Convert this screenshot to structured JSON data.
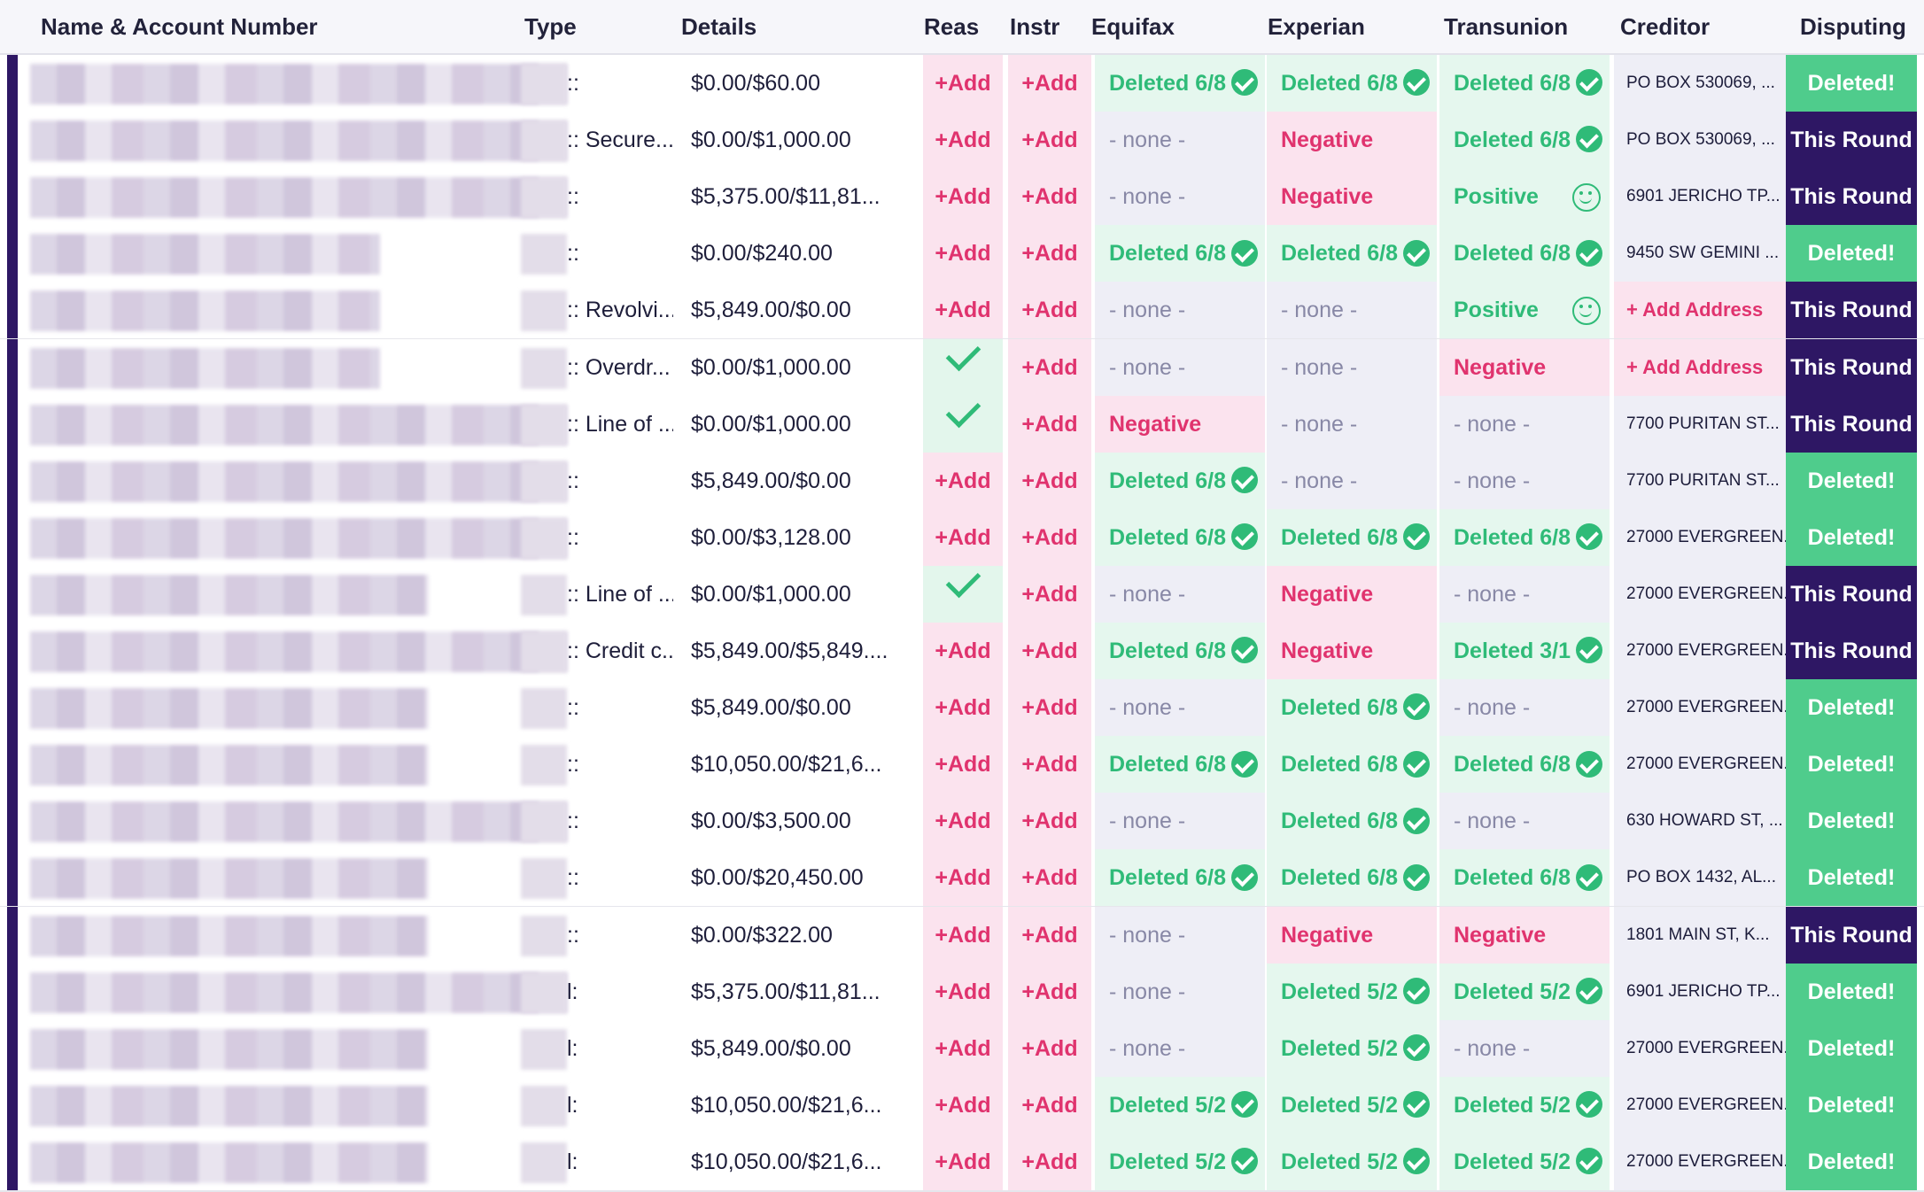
{
  "headers": {
    "name": "Name & Account Number",
    "type": "Type",
    "details": "Details",
    "reas": "Reas",
    "instr": "Instr",
    "equifax": "Equifax",
    "experian": "Experian",
    "transunion": "Transunion",
    "creditor": "Creditor",
    "disputing": "Disputing"
  },
  "labels": {
    "add": "+Add",
    "add_address": "+ Add Address"
  },
  "rows": [
    {
      "type": "::",
      "details": "$0.00/$60.00",
      "reas": "add",
      "eq": "Deleted 6/8",
      "ex": "Deleted 6/8",
      "tu": "Deleted 6/8",
      "creditor": "PO BOX 530069, ...",
      "disputing": "Deleted!"
    },
    {
      "type": ":: Secure...",
      "details": "$0.00/$1,000.00",
      "reas": "add",
      "eq": "- none -",
      "ex": "Negative",
      "tu": "Deleted 6/8",
      "creditor": "PO BOX 530069, ...",
      "disputing": "This Round"
    },
    {
      "type": "::",
      "details": "$5,375.00/$11,81...",
      "reas": "add",
      "eq": "- none -",
      "ex": "Negative",
      "tu": "Positive",
      "creditor": "6901 JERICHO TP...",
      "disputing": "This Round"
    },
    {
      "type": "::",
      "details": "$0.00/$240.00",
      "reas": "add",
      "eq": "Deleted 6/8",
      "ex": "Deleted 6/8",
      "tu": "Deleted 6/8",
      "creditor": "9450 SW GEMINI ...",
      "disputing": "Deleted!"
    },
    {
      "type": ":: Revolvi...",
      "details": "$5,849.00/$0.00",
      "reas": "add",
      "eq": "- none -",
      "ex": "- none -",
      "tu": "Positive",
      "creditor": "+ Add Address",
      "disputing": "This Round"
    },
    {
      "type": ":: Overdr...",
      "details": "$0.00/$1,000.00",
      "reas": "check",
      "eq": "- none -",
      "ex": "- none -",
      "tu": "Negative",
      "creditor": "+ Add Address",
      "disputing": "This Round"
    },
    {
      "type": ":: Line of ...",
      "details": "$0.00/$1,000.00",
      "reas": "check",
      "eq": "Negative",
      "ex": "- none -",
      "tu": "- none -",
      "creditor": "7700 PURITAN ST...",
      "disputing": "This Round"
    },
    {
      "type": "::",
      "details": "$5,849.00/$0.00",
      "reas": "add",
      "eq": "Deleted 6/8",
      "ex": "- none -",
      "tu": "- none -",
      "creditor": "7700 PURITAN ST...",
      "disputing": "Deleted!"
    },
    {
      "type": "::",
      "details": "$0.00/$3,128.00",
      "reas": "add",
      "eq": "Deleted 6/8",
      "ex": "Deleted 6/8",
      "tu": "Deleted 6/8",
      "creditor": "27000 EVERGREEN...",
      "disputing": "Deleted!"
    },
    {
      "type": ":: Line of ...",
      "details": "$0.00/$1,000.00",
      "reas": "check",
      "eq": "- none -",
      "ex": "Negative",
      "tu": "- none -",
      "creditor": "27000 EVERGREEN...",
      "disputing": "This Round"
    },
    {
      "type": ":: Credit c...",
      "details": "$5,849.00/$5,849....",
      "reas": "add",
      "eq": "Deleted 6/8",
      "ex": "Negative",
      "tu": "Deleted 3/1",
      "creditor": "27000 EVERGREEN...",
      "disputing": "This Round"
    },
    {
      "type": "::",
      "details": "$5,849.00/$0.00",
      "reas": "add",
      "eq": "- none -",
      "ex": "Deleted 6/8",
      "tu": "- none -",
      "creditor": "27000 EVERGREEN...",
      "disputing": "Deleted!"
    },
    {
      "type": "::",
      "details": "$10,050.00/$21,6...",
      "reas": "add",
      "eq": "Deleted 6/8",
      "ex": "Deleted 6/8",
      "tu": "Deleted 6/8",
      "creditor": "27000 EVERGREEN...",
      "disputing": "Deleted!"
    },
    {
      "type": "::",
      "details": "$0.00/$3,500.00",
      "reas": "add",
      "eq": "- none -",
      "ex": "Deleted 6/8",
      "tu": "- none -",
      "creditor": "630 HOWARD ST, ...",
      "disputing": "Deleted!"
    },
    {
      "type": "::",
      "details": "$0.00/$20,450.00",
      "reas": "add",
      "eq": "Deleted 6/8",
      "ex": "Deleted 6/8",
      "tu": "Deleted 6/8",
      "creditor": "PO BOX 1432, AL...",
      "disputing": "Deleted!"
    },
    {
      "type": "::",
      "details": "$0.00/$322.00",
      "reas": "add",
      "eq": "- none -",
      "ex": "Negative",
      "tu": "Negative",
      "creditor": "1801 MAIN ST, K...",
      "disputing": "This Round"
    },
    {
      "type": "l:",
      "details": "$5,375.00/$11,81...",
      "reas": "add",
      "eq": "- none -",
      "ex": "Deleted 5/2",
      "tu": "Deleted 5/2",
      "creditor": "6901 JERICHO TP...",
      "disputing": "Deleted!"
    },
    {
      "type": "l:",
      "details": "$5,849.00/$0.00",
      "reas": "add",
      "eq": "- none -",
      "ex": "Deleted 5/2",
      "tu": "- none -",
      "creditor": "27000 EVERGREEN...",
      "disputing": "Deleted!"
    },
    {
      "type": "l:",
      "details": "$10,050.00/$21,6...",
      "reas": "add",
      "eq": "Deleted 5/2",
      "ex": "Deleted 5/2",
      "tu": "Deleted 5/2",
      "creditor": "27000 EVERGREEN...",
      "disputing": "Deleted!"
    },
    {
      "type": "l:",
      "details": "$10,050.00/$21,6...",
      "reas": "add",
      "eq": "Deleted 5/2",
      "ex": "Deleted 5/2",
      "tu": "Deleted 5/2",
      "creditor": "27000 EVERGREEN...",
      "disputing": "Deleted!"
    }
  ]
}
